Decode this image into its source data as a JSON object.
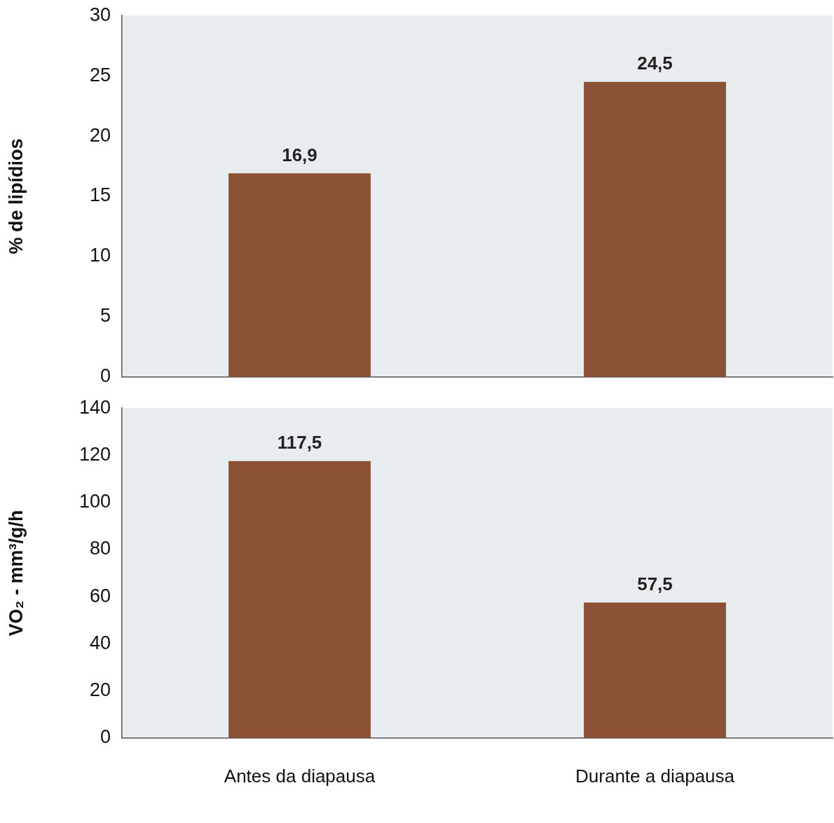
{
  "chart_data": [
    {
      "type": "bar",
      "ylabel": "% de lipídios",
      "categories": [
        null,
        null
      ],
      "values": [
        16.9,
        24.5
      ],
      "value_labels": [
        "16,9",
        "24,5"
      ],
      "color": "#8a5134",
      "ylim": [
        0,
        30
      ],
      "yticks": [
        0,
        5,
        10,
        15,
        20,
        25,
        30
      ],
      "tick_labels": "y"
    },
    {
      "type": "bar",
      "ylabel": "VO₂ - mm³/g/h",
      "categories": [
        "Antes da diapausa",
        "Durante a diapausa"
      ],
      "values": [
        117.5,
        57.5
      ],
      "value_labels": [
        "117,5",
        "57,5"
      ],
      "color": "#8a5134",
      "ylim": [
        0,
        140
      ],
      "yticks": [
        0,
        20,
        40,
        60,
        80,
        100,
        120,
        140
      ]
    }
  ]
}
